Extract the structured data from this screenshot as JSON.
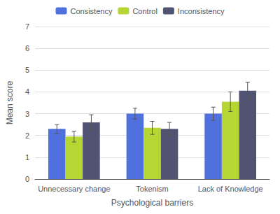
{
  "chart_data": {
    "type": "bar",
    "categories": [
      "Unnecessary change",
      "Tokenism",
      "Lack of Knowledge"
    ],
    "series": [
      {
        "name": "Consistency",
        "values": [
          2.3,
          3.0,
          3.0
        ],
        "errors": [
          0.2,
          0.25,
          0.3
        ]
      },
      {
        "name": "Control",
        "values": [
          1.95,
          2.35,
          3.55
        ],
        "errors": [
          0.25,
          0.3,
          0.45
        ]
      },
      {
        "name": "Inconsistency",
        "values": [
          2.6,
          2.3,
          4.05
        ],
        "errors": [
          0.35,
          0.3,
          0.4
        ]
      }
    ],
    "xlabel": "Psychological barriers",
    "ylabel": "Mean score",
    "ylim": [
      0,
      7
    ],
    "yticks": [
      0,
      1,
      2,
      3,
      4,
      5,
      6,
      7
    ],
    "grid": true,
    "legend": "top"
  }
}
